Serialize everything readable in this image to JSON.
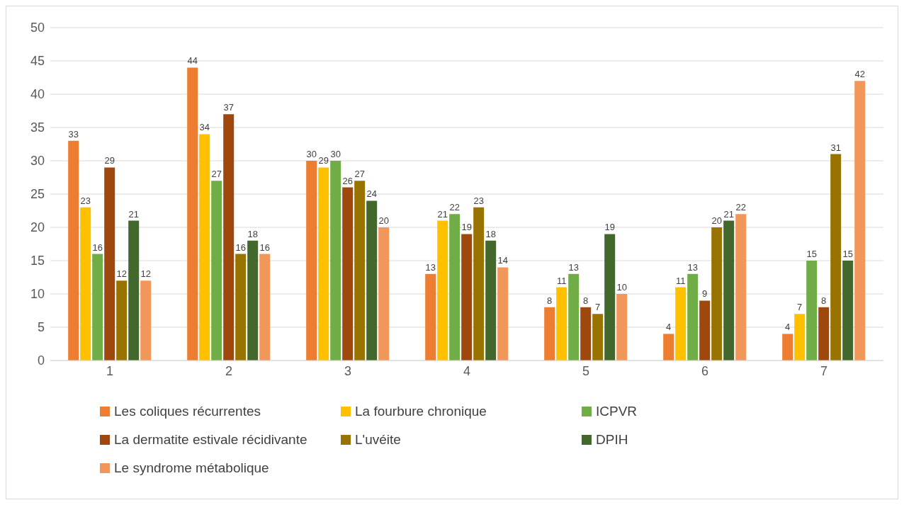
{
  "chart_data": {
    "type": "bar",
    "categories": [
      "1",
      "2",
      "3",
      "4",
      "5",
      "6",
      "7"
    ],
    "series": [
      {
        "name": "Les coliques récurrentes",
        "color": "#ed7d31",
        "values": [
          33,
          44,
          30,
          13,
          8,
          4,
          4
        ]
      },
      {
        "name": "La fourbure chronique",
        "color": "#ffc000",
        "values": [
          23,
          34,
          29,
          21,
          11,
          11,
          7
        ]
      },
      {
        "name": "ICPVR",
        "color": "#70ad47",
        "values": [
          16,
          27,
          30,
          22,
          13,
          13,
          15
        ]
      },
      {
        "name": "La dermatite estivale récidivante",
        "color": "#9e480e",
        "values": [
          29,
          37,
          26,
          19,
          8,
          9,
          8
        ]
      },
      {
        "name": "L'uvéite",
        "color": "#997300",
        "values": [
          12,
          16,
          27,
          23,
          7,
          20,
          31
        ]
      },
      {
        "name": "DPIH",
        "color": "#43682b",
        "values": [
          21,
          18,
          24,
          18,
          19,
          21,
          15
        ]
      },
      {
        "name": "Le syndrome métabolique",
        "color": "#f1975a",
        "values": [
          12,
          16,
          20,
          14,
          10,
          22,
          42
        ]
      }
    ],
    "ylim": [
      0,
      50
    ],
    "yticks": [
      0,
      5,
      10,
      15,
      20,
      25,
      30,
      35,
      40,
      45,
      50
    ],
    "grid": "y",
    "legend": "bottom",
    "data_labels": true
  }
}
